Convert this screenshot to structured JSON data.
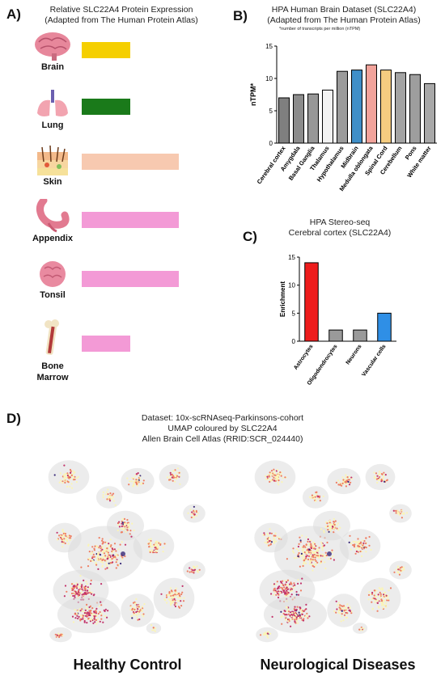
{
  "panel_labels": {
    "a": "A)",
    "b": "B)",
    "c": "C)",
    "d": "D)"
  },
  "panel_a": {
    "title_line1": "Relative SLC22A4 Protein Expression",
    "title_line2": "(Adapted from The Human Protein Atlas)",
    "organs": [
      {
        "name": "Brain",
        "icon": "brain-icon",
        "color": "#f5cf00",
        "level": 0.15
      },
      {
        "name": "Lung",
        "icon": "lung-icon",
        "color": "#1a7a1a",
        "level": 0.15
      },
      {
        "name": "Skin",
        "icon": "skin-icon",
        "color": "#f7c9b0",
        "level": 0.45
      },
      {
        "name": "Appendix",
        "icon": "appendix-icon",
        "color": "#f39ad6",
        "level": 0.45
      },
      {
        "name": "Tonsil",
        "icon": "tonsil-icon",
        "color": "#f39ad6",
        "level": 0.45
      },
      {
        "name": "Bone Marrow",
        "icon": "bone-icon",
        "color": "#f39ad6",
        "level": 0.15
      }
    ]
  },
  "chart_data": [
    {
      "type": "bar",
      "panel": "B",
      "title": "HPA Human Brain Dataset (SLC22A4)",
      "subtitle": "(Adapted from The Human Protein Atlas)",
      "note": "*number of transcripts per million (nTPM)",
      "ylabel": "nTPM*",
      "xlabel": "",
      "ylim": [
        0,
        15
      ],
      "yticks": [
        0,
        5,
        10,
        15
      ],
      "categories": [
        "Cerebral cortex",
        "Amygdala",
        "Basal Ganglia",
        "Thalamus",
        "Hypothalamus",
        "Midbrain",
        "Medulla oblongata",
        "Spinal Cord",
        "Cerebellum",
        "Pons",
        "White matter"
      ],
      "values": [
        7.0,
        7.5,
        7.6,
        8.2,
        11.1,
        11.3,
        12.1,
        11.3,
        10.9,
        10.6,
        9.2
      ],
      "colors": [
        "#7f7f7f",
        "#8c8c8c",
        "#979797",
        "#f2f2f2",
        "#9b9b9b",
        "#3f8fc8",
        "#f2a39b",
        "#f5cc80",
        "#a3a3a3",
        "#9e9e9e",
        "#a8a8a8"
      ],
      "grid": false,
      "legend": "none"
    },
    {
      "type": "bar",
      "panel": "C",
      "title": "HPA Stereo-seq",
      "subtitle": "Cerebral cortex (SLC22A4)",
      "ylabel": "Enrichment",
      "xlabel": "",
      "ylim": [
        0,
        15
      ],
      "yticks": [
        0,
        5,
        10,
        15
      ],
      "categories": [
        "Astrocytes",
        "Oligodendrocytes",
        "Neurons",
        "Vascular cells"
      ],
      "values": [
        14,
        2,
        2,
        5
      ],
      "colors": [
        "#ee1c1c",
        "#9a9a9a",
        "#9a9a9a",
        "#2f8fe6"
      ],
      "grid": false,
      "legend": "none"
    }
  ],
  "panel_d": {
    "title_line1": "Dataset: 10x-scRNAseq-Parkinsons-cohort",
    "title_line2": "UMAP coloured by SLC22A4",
    "title_line3": "Allen Brain Cell Atlas (RRID:SCR_024440)",
    "left_caption": "Healthy Control",
    "right_caption": "Neurological Diseases",
    "colors": {
      "background_cells": "#dcdcdc",
      "low": "#fbf5b5",
      "mid": "#ee7e62",
      "high": "#c2336b",
      "max": "#3a2a78"
    }
  }
}
